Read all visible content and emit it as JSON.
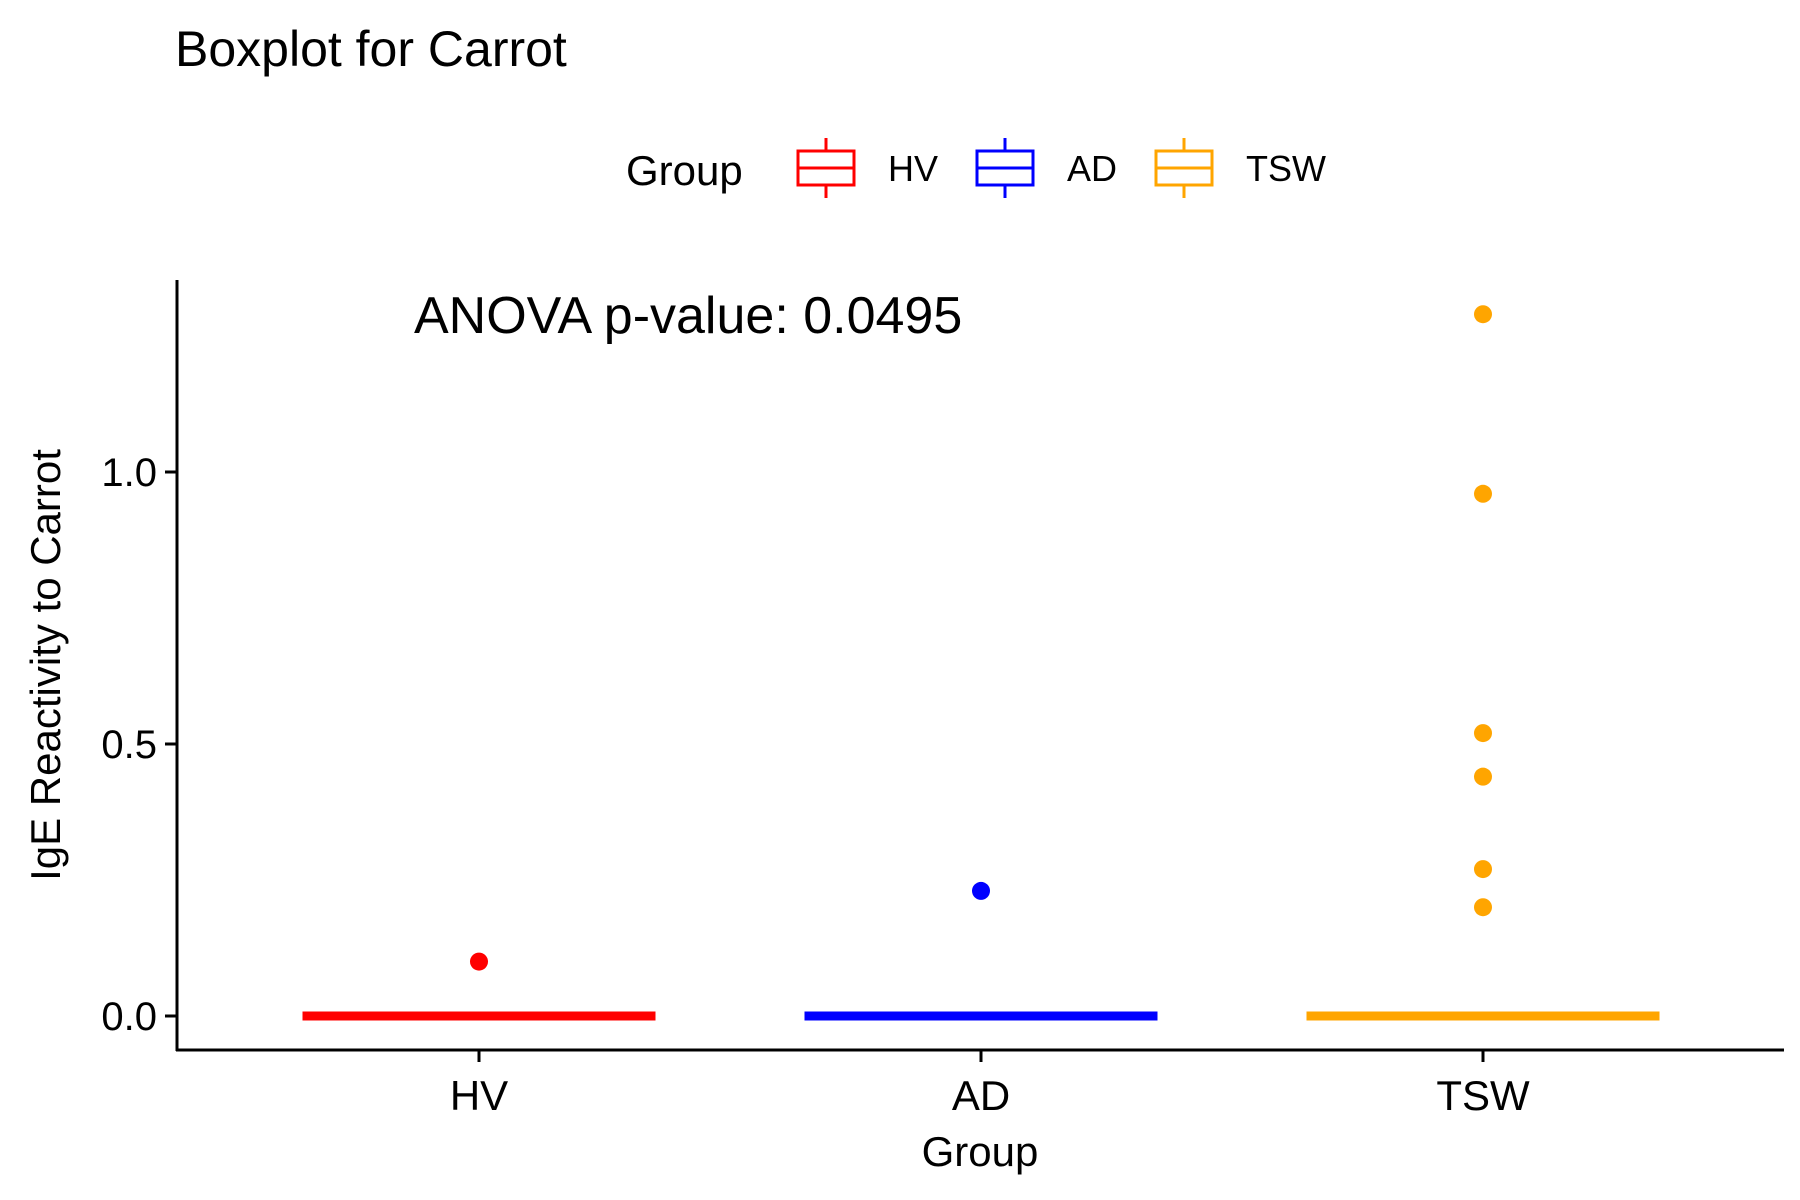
{
  "chart_data": {
    "type": "boxplot",
    "title": "Boxplot for Carrot",
    "xlabel": "Group",
    "ylabel": "IgE Reactivity to Carrot",
    "annotation": "ANOVA p-value: 0.0495",
    "categories": [
      "HV",
      "AD",
      "TSW"
    ],
    "ylim": [
      -0.063,
      1.35
    ],
    "yticks": [
      0.0,
      0.5,
      1.0
    ],
    "ytick_labels": [
      "0.0",
      "0.5",
      "1.0"
    ],
    "grid": false,
    "legend": {
      "title": "Group",
      "position": "top",
      "entries": [
        "HV",
        "AD",
        "TSW"
      ]
    },
    "series": [
      {
        "name": "HV",
        "color": "#FF0000",
        "box": {
          "min": 0.0,
          "q1": 0.0,
          "median": 0.0,
          "q3": 0.0,
          "max": 0.0
        },
        "outliers": [
          0.1
        ]
      },
      {
        "name": "AD",
        "color": "#0000FF",
        "box": {
          "min": 0.0,
          "q1": 0.0,
          "median": 0.0,
          "q3": 0.0,
          "max": 0.0
        },
        "outliers": [
          0.23
        ]
      },
      {
        "name": "TSW",
        "color": "#FFA500",
        "box": {
          "min": 0.0,
          "q1": 0.0,
          "median": 0.0,
          "q3": 0.0,
          "max": 0.0
        },
        "outliers": [
          0.2,
          0.27,
          0.44,
          0.52,
          0.96,
          1.29
        ]
      }
    ]
  }
}
